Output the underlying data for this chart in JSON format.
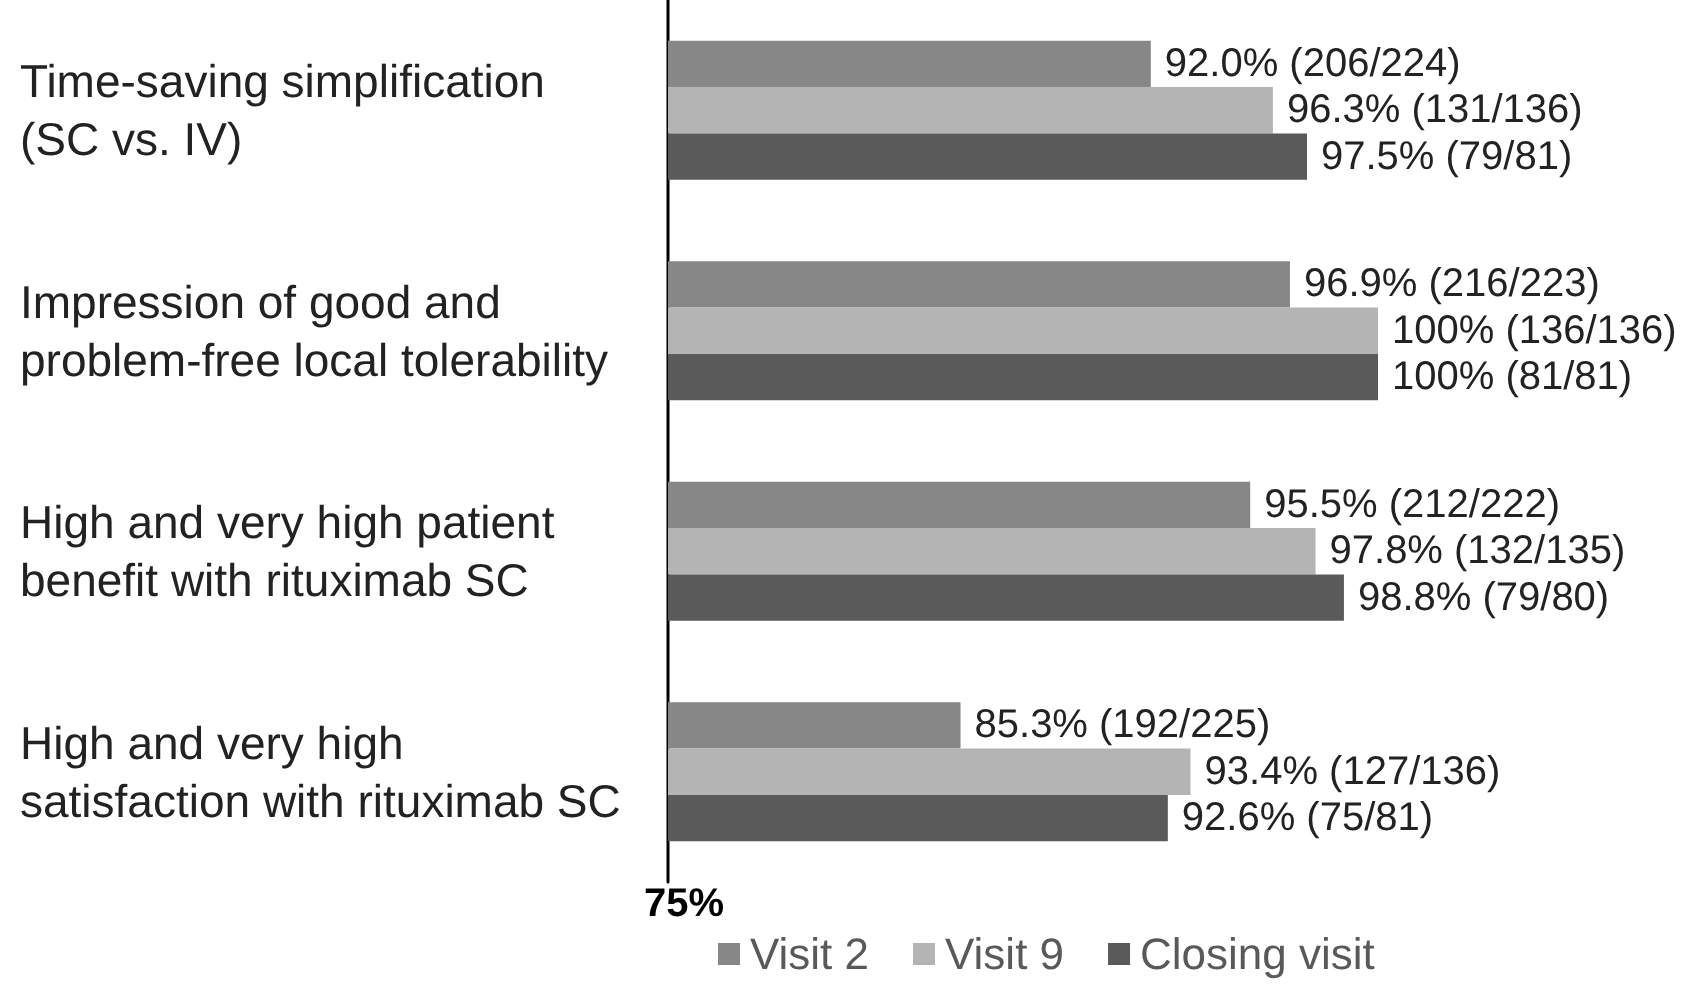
{
  "chart_data": {
    "type": "bar",
    "orientation": "horizontal",
    "categories": [
      "Time-saving simplification (SC vs. IV)",
      "Impression of good and problem-free local tolerability",
      "High and very high patient benefit with rituximab SC",
      "High and very high satisfaction with rituximab SC"
    ],
    "series": [
      {
        "name": "Visit 2",
        "color": "#878787",
        "values": [
          92.0,
          96.9,
          95.5,
          85.3
        ],
        "value_labels": [
          "92.0% (206/224)",
          "96.9% (216/223)",
          "95.5% (212/222)",
          "85.3% (192/225)"
        ]
      },
      {
        "name": "Visit 9",
        "color": "#b4b4b4",
        "values": [
          96.3,
          100,
          97.8,
          93.4
        ],
        "value_labels": [
          "96.3% (131/136)",
          "100% (136/136)",
          "97.8% (132/135)",
          "93.4% (127/136)"
        ]
      },
      {
        "name": "Closing visit",
        "color": "#5a5a5a",
        "values": [
          97.5,
          100,
          98.8,
          92.6
        ],
        "value_labels": [
          "97.5% (79/81)",
          "100% (81/81)",
          "98.8% (79/80)",
          "92.6% (75/81)"
        ]
      }
    ],
    "xlim": [
      75,
      100
    ],
    "annotations": [
      "75%"
    ],
    "legend": "bottom"
  }
}
